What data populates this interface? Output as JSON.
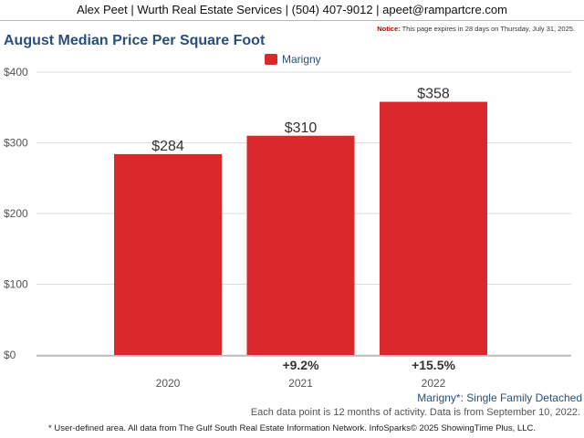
{
  "header": {
    "contact": "Alex Peet | Wurth Real Estate Services | (504) 407-9012 | apeet@rampartcre.com"
  },
  "notice": {
    "label": "Notice:",
    "text": "This page expires in 28 days on Thursday, July 31, 2025."
  },
  "subtitle": "Marigny*: Single Family Detached",
  "data_note": "Each data point is 12 months of activity. Data is from September 10, 2022.",
  "footer": "* User-defined area. All data from The Gulf South Real Estate Information Network. InfoSparks© 2025 ShowingTime Plus, LLC.",
  "colors": {
    "bar": "#d9292b",
    "title": "#2a4f7a",
    "grid": "#dddddd",
    "axis_text": "#555555"
  },
  "chart_data": {
    "type": "bar",
    "title": "August Median Price Per Square Foot",
    "categories": [
      "2020",
      "2021",
      "2022"
    ],
    "series": [
      {
        "name": "Marigny",
        "values": [
          284,
          310,
          358
        ]
      }
    ],
    "data_labels": [
      "$284",
      "$310",
      "$358"
    ],
    "change_labels": [
      "",
      "+9.2%",
      "+15.5%"
    ],
    "y_ticks": [
      0,
      100,
      200,
      300,
      400
    ],
    "y_tick_labels": [
      "$0",
      "$100",
      "$200",
      "$300",
      "$400"
    ],
    "ylim": [
      0,
      400
    ],
    "grid": true,
    "legend": "top-center"
  }
}
